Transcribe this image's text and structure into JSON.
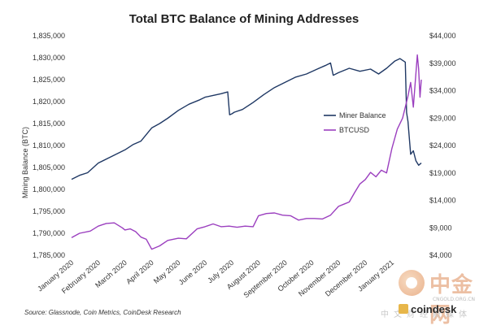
{
  "chart_data": {
    "type": "line",
    "title": "Total BTC Balance of Mining Addresses",
    "ylabel_left": "Mining Balance (BTC)",
    "left_axis": {
      "min": 1785000,
      "max": 1835000,
      "step": 5000,
      "ticks": [
        "1,785,000",
        "1,790,000",
        "1,795,000",
        "1,800,000",
        "1,805,000",
        "1,810,000",
        "1,815,000",
        "1,820,000",
        "1,825,000",
        "1,830,000",
        "1,835,000"
      ]
    },
    "right_axis": {
      "min": 4000,
      "max": 44000,
      "step": 5000,
      "ticks": [
        "$4,000",
        "$9,000",
        "$14,000",
        "$19,000",
        "$24,000",
        "$29,000",
        "$34,000",
        "$39,000",
        "$44,000"
      ]
    },
    "x_axis": {
      "start": 0,
      "end": 13.1,
      "ticks": [
        "January 2020",
        "February 2020",
        "March 2020",
        "April 2020",
        "May 2020",
        "June 2020",
        "July 2020",
        "August 2020",
        "September 2020",
        "October 2020",
        "November 2020",
        "December 2020",
        "January 2021"
      ]
    },
    "legend": {
      "position": "right-center",
      "entries": [
        "Miner Balance",
        "BTCUSD"
      ]
    },
    "series": [
      {
        "name": "Miner Balance",
        "axis": "left",
        "color": "#1f3864",
        "x": [
          0,
          0.3,
          0.6,
          1.0,
          1.5,
          2.0,
          2.3,
          2.6,
          3.0,
          3.3,
          3.6,
          4.0,
          4.4,
          4.8,
          5.0,
          5.3,
          5.6,
          5.85,
          5.92,
          6.0,
          6.1,
          6.4,
          6.8,
          7.2,
          7.6,
          8.0,
          8.4,
          8.8,
          9.2,
          9.5,
          9.7,
          9.8,
          10.0,
          10.4,
          10.8,
          11.2,
          11.5,
          11.8,
          12.1,
          12.3,
          12.5,
          12.55,
          12.6,
          12.7,
          12.8,
          12.9,
          13.0,
          13.1
        ],
        "values": [
          1802300,
          1803200,
          1803800,
          1806000,
          1807500,
          1809000,
          1810200,
          1811000,
          1814000,
          1815000,
          1816200,
          1818000,
          1819400,
          1820400,
          1821000,
          1821400,
          1821800,
          1822200,
          1817000,
          1817200,
          1817600,
          1818200,
          1819800,
          1821600,
          1823200,
          1824400,
          1825600,
          1826300,
          1827400,
          1828200,
          1828800,
          1826000,
          1826600,
          1827600,
          1826900,
          1827400,
          1826300,
          1827600,
          1829200,
          1829800,
          1829000,
          1817500,
          1815500,
          1808000,
          1808800,
          1806500,
          1805500,
          1806000
        ]
      },
      {
        "name": "BTCUSD",
        "axis": "right",
        "color": "#9b3fbf",
        "x": [
          0,
          0.3,
          0.7,
          1.0,
          1.3,
          1.6,
          1.9,
          2.0,
          2.2,
          2.4,
          2.6,
          2.8,
          3.0,
          3.3,
          3.6,
          4.0,
          4.3,
          4.7,
          5.0,
          5.3,
          5.6,
          5.9,
          6.2,
          6.5,
          6.8,
          7.0,
          7.3,
          7.6,
          7.9,
          8.2,
          8.5,
          8.8,
          9.1,
          9.4,
          9.7,
          10.0,
          10.2,
          10.4,
          10.6,
          10.8,
          11.0,
          11.2,
          11.4,
          11.6,
          11.8,
          12.0,
          12.2,
          12.4,
          12.6,
          12.7,
          12.8,
          12.9,
          12.95,
          13.0,
          13.05,
          13.1
        ],
        "values": [
          7200,
          8000,
          8400,
          9300,
          9800,
          9900,
          9000,
          8600,
          8800,
          8300,
          7300,
          6900,
          5100,
          5700,
          6700,
          7100,
          7000,
          8800,
          9200,
          9700,
          9200,
          9300,
          9100,
          9300,
          9200,
          11200,
          11600,
          11700,
          11300,
          11200,
          10400,
          10700,
          10700,
          10600,
          11300,
          12900,
          13300,
          13700,
          15400,
          17000,
          17800,
          19100,
          18300,
          19500,
          19000,
          23500,
          27000,
          29000,
          33000,
          35500,
          31000,
          37200,
          40500,
          38000,
          32800,
          36000
        ]
      }
    ],
    "source": "Source: Glassnode, Coin Metrics, CoinDesk Research",
    "brand": "coindesk"
  },
  "watermark": {
    "name": "中金网",
    "url": "CNGOLD.ORG.CN",
    "sub": "中文财经新媒体"
  }
}
